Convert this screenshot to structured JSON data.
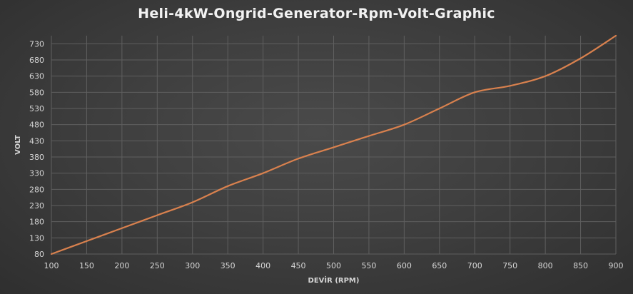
{
  "chart_data": {
    "type": "line",
    "title": "Heli-4kW-Ongrid-Generator-Rpm-Volt-Graphic",
    "xlabel": "DEVİR (RPM)",
    "ylabel": "VOLT",
    "xlim": [
      100,
      900
    ],
    "ylim": [
      80,
      755
    ],
    "xticks": [
      100,
      150,
      200,
      250,
      300,
      350,
      400,
      450,
      500,
      550,
      600,
      650,
      700,
      750,
      800,
      850,
      900
    ],
    "yticks": [
      80,
      130,
      180,
      230,
      280,
      330,
      380,
      430,
      480,
      530,
      580,
      630,
      680,
      730
    ],
    "grid": true,
    "legend": "none",
    "line_color": "#d9814e",
    "series": [
      {
        "x": [
          100,
          150,
          200,
          250,
          300,
          350,
          400,
          450,
          500,
          550,
          600,
          650,
          700,
          750,
          800,
          850,
          900
        ],
        "values": [
          80,
          120,
          160,
          200,
          240,
          290,
          330,
          375,
          410,
          445,
          480,
          530,
          580,
          600,
          630,
          685,
          755
        ]
      }
    ]
  }
}
